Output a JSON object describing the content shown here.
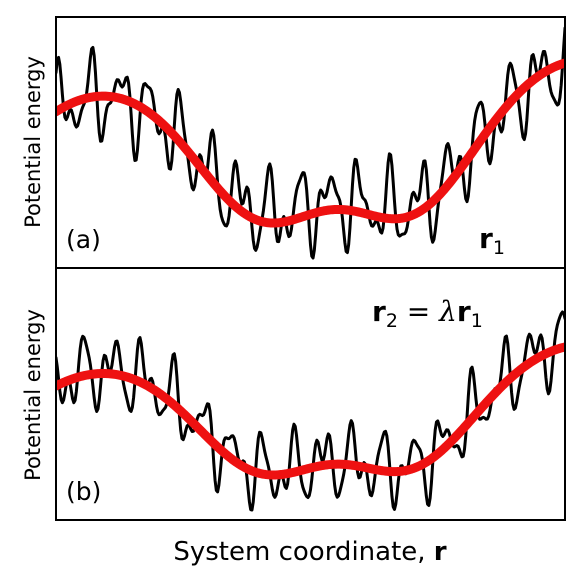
{
  "axes": {
    "ylabel_top": "Potential energy",
    "ylabel_bottom": "Potential energy",
    "xlabel_text": "System coordinate, ",
    "xlabel_symbol": "r"
  },
  "panels": [
    {
      "tag": "(a)",
      "equation": {
        "vec": "r",
        "sub": "1"
      }
    },
    {
      "tag": "(b)",
      "equation": {
        "lhs_vec": "r",
        "lhs_sub": "2",
        "eq": " = ",
        "scalar": "λ",
        "rhs_vec": "r",
        "rhs_sub": "1"
      }
    }
  ],
  "colors": {
    "smooth_curve": "#ee1111",
    "rough_curve": "#000000",
    "frame": "#000000"
  }
}
